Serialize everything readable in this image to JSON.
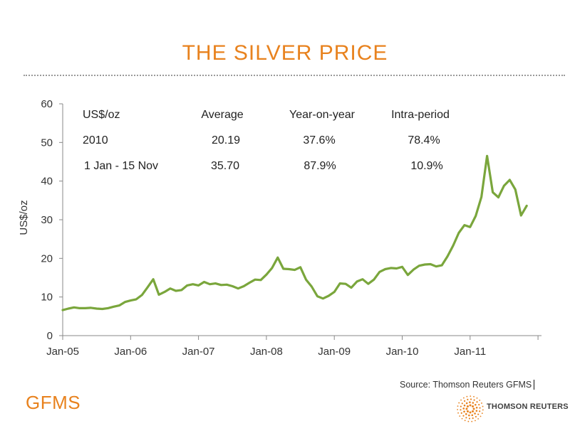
{
  "colors": {
    "accent": "#e8821e",
    "series": "#7aa63c",
    "axis": "#888888",
    "brand_gray": "#404040"
  },
  "source": "Source: Thomson Reuters GFMS",
  "brand": {
    "left_logo": "GFMS",
    "right_logo_text": "THOMSON REUTERS",
    "right_logo_icon": "thomson-reuters-dot-globe-icon"
  },
  "chart_data": {
    "type": "line",
    "title": "THE SILVER PRICE",
    "ylabel": "US$/oz",
    "xlabel": "",
    "ylim": [
      0,
      60
    ],
    "yticks": [
      "0",
      "10",
      "20",
      "30",
      "40",
      "50",
      "60"
    ],
    "xticks": [
      "Jan-05",
      "Jan-06",
      "Jan-07",
      "Jan-08",
      "Jan-09",
      "Jan-10",
      "Jan-11"
    ],
    "grid": false,
    "legend": "none",
    "series": [
      {
        "x": [
          "2005-01",
          "2005-02",
          "2005-03",
          "2005-04",
          "2005-05",
          "2005-06",
          "2005-07",
          "2005-08",
          "2005-09",
          "2005-10",
          "2005-11",
          "2005-12",
          "2006-01",
          "2006-02",
          "2006-03",
          "2006-04",
          "2006-05",
          "2006-06",
          "2006-07",
          "2006-08",
          "2006-09",
          "2006-10",
          "2006-11",
          "2006-12",
          "2007-01",
          "2007-02",
          "2007-03",
          "2007-04",
          "2007-05",
          "2007-06",
          "2007-07",
          "2007-08",
          "2007-09",
          "2007-10",
          "2007-11",
          "2007-12",
          "2008-01",
          "2008-02",
          "2008-03",
          "2008-04",
          "2008-05",
          "2008-06",
          "2008-07",
          "2008-08",
          "2008-09",
          "2008-10",
          "2008-11",
          "2008-12",
          "2009-01",
          "2009-02",
          "2009-03",
          "2009-04",
          "2009-05",
          "2009-06",
          "2009-07",
          "2009-08",
          "2009-09",
          "2009-10",
          "2009-11",
          "2009-12",
          "2010-01",
          "2010-02",
          "2010-03",
          "2010-04",
          "2010-05",
          "2010-06",
          "2010-07",
          "2010-08",
          "2010-09",
          "2010-10",
          "2010-11",
          "2010-12",
          "2011-01",
          "2011-02",
          "2011-03",
          "2011-04",
          "2011-05",
          "2011-06",
          "2011-07",
          "2011-08",
          "2011-09",
          "2011-10",
          "2011-11"
        ],
        "y": [
          6.6,
          7.0,
          7.3,
          7.1,
          7.1,
          7.2,
          7.0,
          6.9,
          7.1,
          7.5,
          7.8,
          8.7,
          9.1,
          9.4,
          10.5,
          12.5,
          14.6,
          10.6,
          11.3,
          12.2,
          11.6,
          11.8,
          13.0,
          13.3,
          13.0,
          13.9,
          13.3,
          13.5,
          13.1,
          13.2,
          12.8,
          12.2,
          12.8,
          13.7,
          14.5,
          14.4,
          15.8,
          17.5,
          20.2,
          17.3,
          17.2,
          17.0,
          17.7,
          14.5,
          12.7,
          10.2,
          9.6,
          10.3,
          11.3,
          13.5,
          13.4,
          12.4,
          14.0,
          14.6,
          13.4,
          14.5,
          16.5,
          17.2,
          17.5,
          17.4,
          17.8,
          15.7,
          17.1,
          18.1,
          18.4,
          18.5,
          17.9,
          18.2,
          20.5,
          23.3,
          26.6,
          28.6,
          28.1,
          31.0,
          35.9,
          46.5,
          37.1,
          35.8,
          38.8,
          40.3,
          37.8,
          31.1,
          33.6
        ]
      }
    ],
    "table": {
      "headers": [
        "US$/oz",
        "Average",
        "Year-on-year",
        "Intra-period"
      ],
      "rows": [
        [
          "2010",
          "20.19",
          "37.6%",
          "78.4%"
        ],
        [
          "1 Jan - 15 Nov",
          "35.70",
          "87.9%",
          "10.9%"
        ]
      ]
    }
  }
}
